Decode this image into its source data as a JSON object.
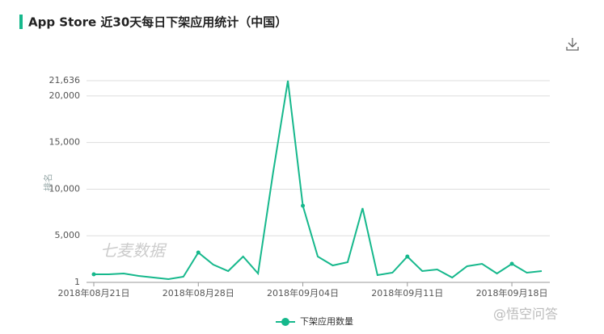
{
  "chart_data": {
    "type": "line",
    "title": "App Store 近30天每日下架应用统计（中国）",
    "y_label": "排名",
    "watermark": "七麦数据",
    "corner_watermark": "@悟空问答",
    "categories": [
      "2018年08月21日",
      null,
      null,
      null,
      null,
      null,
      null,
      "2018年08月28日",
      null,
      null,
      null,
      null,
      null,
      null,
      "2018年09月04日",
      null,
      null,
      null,
      null,
      null,
      null,
      "2018年09月11日",
      null,
      null,
      null,
      null,
      null,
      null,
      "2018年09月18日",
      null,
      null
    ],
    "series": [
      {
        "name": "下架应用数量",
        "color": "#16b88c",
        "values": [
          866,
          866,
          952,
          693,
          519,
          346,
          606,
          3203,
          1905,
          1212,
          2771,
          952,
          11688,
          21636,
          8225,
          2771,
          1818,
          2165,
          7965,
          779,
          1039,
          2771,
          1212,
          1385,
          519,
          1732,
          1991,
          952,
          1991,
          1039,
          1212
        ]
      }
    ],
    "ylim": [
      1,
      21636
    ],
    "yticks": [
      1,
      {
        "value": 5000,
        "label": "5,000"
      },
      {
        "value": 10000,
        "label": "10,000"
      },
      {
        "value": 15000,
        "label": "15,000"
      },
      {
        "value": 20000,
        "label": "20,000"
      },
      {
        "value": 21636,
        "label": "21,636"
      }
    ],
    "grid": true,
    "legend": "bottom"
  }
}
